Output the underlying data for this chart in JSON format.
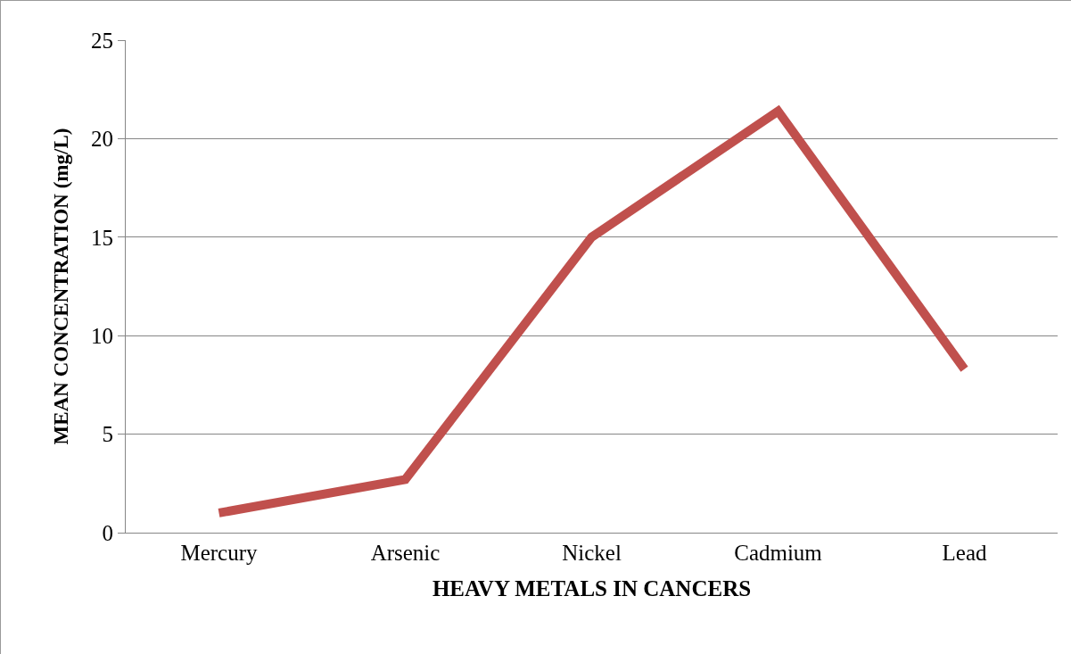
{
  "chart_data": {
    "type": "line",
    "xlabel": "HEAVY METALS IN CANCERS",
    "ylabel": "MEAN CONCENTRATION (mg/L)",
    "categories": [
      "Mercury",
      "Arsenic",
      "Nickel",
      "Cadmium",
      "Lead"
    ],
    "series": [
      {
        "color": "#c0504d",
        "values": [
          1.0,
          2.7,
          15.0,
          21.4,
          8.3
        ]
      }
    ],
    "ylim": [
      0,
      25
    ],
    "yticks": [
      0,
      5,
      10,
      15,
      20,
      25
    ],
    "grid": "y",
    "marker": "none",
    "line_style": "solid"
  }
}
